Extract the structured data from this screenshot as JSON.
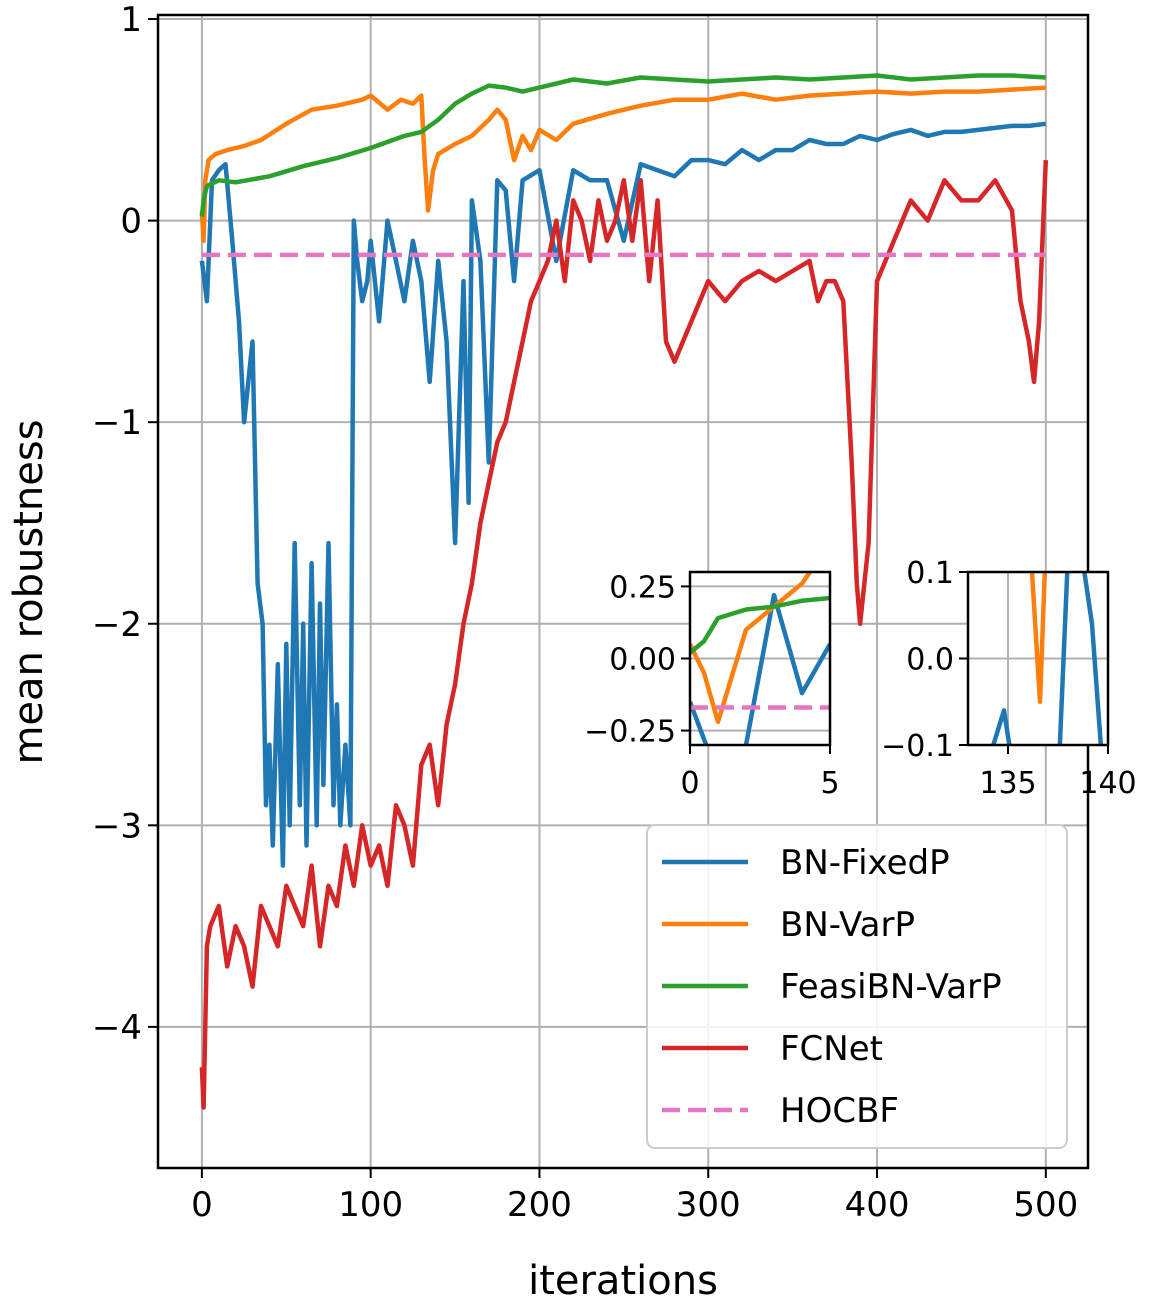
{
  "chart_data": {
    "type": "line",
    "title": "",
    "xlabel": "iterations",
    "ylabel": "mean robustness",
    "xlim": [
      -26,
      525
    ],
    "ylim": [
      -4.7,
      1.02
    ],
    "xticks": [
      0,
      100,
      200,
      300,
      400,
      500
    ],
    "xtick_labels": [
      "0",
      "100",
      "200",
      "300",
      "400",
      "500"
    ],
    "yticks": [
      1,
      0,
      -1,
      -2,
      -3,
      -4
    ],
    "ytick_labels": [
      "1",
      "0",
      "−1",
      "−2",
      "−3",
      "−4"
    ],
    "grid": true,
    "legend_position": "lower-right",
    "series": [
      {
        "name": "BN-FixedP",
        "color": "#1f77b4",
        "style": "solid",
        "x": [
          0,
          3,
          6,
          10,
          14,
          18,
          22,
          25,
          30,
          33,
          36,
          38,
          40,
          42,
          45,
          48,
          50,
          52,
          55,
          58,
          60,
          62,
          65,
          68,
          70,
          72,
          75,
          78,
          80,
          82,
          85,
          88,
          90,
          92,
          95,
          98,
          100,
          105,
          110,
          115,
          120,
          125,
          130,
          135,
          140,
          145,
          150,
          155,
          158,
          160,
          165,
          170,
          175,
          180,
          185,
          190,
          200,
          210,
          220,
          230,
          240,
          250,
          260,
          270,
          280,
          290,
          300,
          310,
          320,
          330,
          340,
          350,
          360,
          370,
          380,
          390,
          400,
          410,
          420,
          430,
          440,
          450,
          460,
          470,
          480,
          490,
          500
        ],
        "y": [
          -0.2,
          -0.4,
          0.2,
          0.25,
          0.28,
          -0.1,
          -0.5,
          -1.0,
          -0.6,
          -1.8,
          -2.0,
          -2.9,
          -2.6,
          -3.1,
          -2.2,
          -3.2,
          -2.1,
          -3.0,
          -1.6,
          -2.9,
          -2.0,
          -3.1,
          -1.7,
          -3.0,
          -1.9,
          -2.8,
          -1.6,
          -2.9,
          -2.4,
          -3.0,
          -2.6,
          -3.0,
          0.0,
          -0.2,
          -0.4,
          -0.3,
          -0.1,
          -0.5,
          0.0,
          -0.2,
          -0.4,
          -0.1,
          -0.3,
          -0.8,
          -0.2,
          -0.6,
          -1.6,
          -0.3,
          -1.4,
          0.1,
          -0.2,
          -1.2,
          0.2,
          0.15,
          -0.3,
          0.2,
          0.25,
          -0.2,
          0.25,
          0.2,
          0.2,
          -0.1,
          0.28,
          0.25,
          0.22,
          0.3,
          0.3,
          0.28,
          0.35,
          0.3,
          0.35,
          0.35,
          0.4,
          0.38,
          0.38,
          0.42,
          0.4,
          0.43,
          0.45,
          0.42,
          0.44,
          0.44,
          0.45,
          0.46,
          0.47,
          0.47,
          0.48
        ]
      },
      {
        "name": "BN-VarP",
        "color": "#ff7f0e",
        "style": "solid",
        "x": [
          0,
          1,
          2,
          4,
          8,
          15,
          25,
          35,
          50,
          65,
          80,
          95,
          100,
          110,
          118,
          125,
          130,
          132,
          134,
          137,
          140,
          150,
          160,
          170,
          175,
          180,
          185,
          190,
          195,
          200,
          210,
          220,
          240,
          260,
          280,
          300,
          320,
          340,
          360,
          380,
          400,
          420,
          440,
          460,
          480,
          500
        ],
        "y": [
          0.05,
          -0.1,
          0.2,
          0.3,
          0.33,
          0.35,
          0.37,
          0.4,
          0.48,
          0.55,
          0.57,
          0.6,
          0.62,
          0.55,
          0.6,
          0.58,
          0.62,
          0.3,
          0.05,
          0.25,
          0.33,
          0.38,
          0.42,
          0.5,
          0.55,
          0.5,
          0.3,
          0.42,
          0.35,
          0.45,
          0.4,
          0.48,
          0.53,
          0.57,
          0.6,
          0.6,
          0.63,
          0.6,
          0.62,
          0.63,
          0.64,
          0.63,
          0.64,
          0.64,
          0.65,
          0.66
        ]
      },
      {
        "name": "FeasiBN-VarP",
        "color": "#2ca02c",
        "style": "solid",
        "x": [
          0,
          1,
          2,
          3,
          5,
          10,
          20,
          40,
          60,
          80,
          100,
          120,
          130,
          140,
          150,
          160,
          170,
          180,
          190,
          200,
          220,
          240,
          260,
          280,
          300,
          320,
          340,
          360,
          380,
          400,
          420,
          440,
          460,
          480,
          500
        ],
        "y": [
          0.02,
          0.1,
          0.14,
          0.17,
          0.18,
          0.2,
          0.19,
          0.22,
          0.27,
          0.31,
          0.36,
          0.42,
          0.44,
          0.5,
          0.58,
          0.63,
          0.67,
          0.66,
          0.64,
          0.66,
          0.7,
          0.68,
          0.71,
          0.7,
          0.69,
          0.7,
          0.71,
          0.7,
          0.71,
          0.72,
          0.7,
          0.71,
          0.72,
          0.72,
          0.71
        ]
      },
      {
        "name": "FCNet",
        "color": "#d62728",
        "style": "solid",
        "x": [
          0,
          1,
          3,
          5,
          10,
          15,
          20,
          25,
          30,
          35,
          40,
          45,
          50,
          55,
          60,
          65,
          70,
          75,
          80,
          85,
          90,
          95,
          100,
          105,
          110,
          115,
          120,
          125,
          130,
          135,
          140,
          145,
          150,
          155,
          160,
          165,
          170,
          175,
          180,
          185,
          190,
          195,
          200,
          205,
          210,
          215,
          220,
          225,
          230,
          235,
          240,
          245,
          250,
          255,
          260,
          265,
          270,
          275,
          280,
          290,
          300,
          310,
          320,
          330,
          340,
          350,
          360,
          365,
          370,
          375,
          380,
          385,
          388,
          390,
          395,
          400,
          410,
          420,
          430,
          440,
          450,
          460,
          470,
          480,
          485,
          490,
          493,
          496,
          500
        ],
        "y": [
          -4.2,
          -4.4,
          -3.6,
          -3.5,
          -3.4,
          -3.7,
          -3.5,
          -3.6,
          -3.8,
          -3.4,
          -3.5,
          -3.6,
          -3.3,
          -3.4,
          -3.5,
          -3.2,
          -3.6,
          -3.3,
          -3.4,
          -3.1,
          -3.3,
          -3.0,
          -3.2,
          -3.1,
          -3.3,
          -2.9,
          -3.0,
          -3.2,
          -2.7,
          -2.6,
          -2.9,
          -2.5,
          -2.3,
          -2.0,
          -1.8,
          -1.5,
          -1.3,
          -1.1,
          -1.0,
          -0.8,
          -0.6,
          -0.4,
          -0.3,
          -0.2,
          0.0,
          -0.3,
          0.1,
          0.0,
          -0.2,
          0.1,
          -0.1,
          0.0,
          0.2,
          -0.1,
          0.2,
          -0.3,
          0.1,
          -0.6,
          -0.7,
          -0.5,
          -0.3,
          -0.4,
          -0.3,
          -0.25,
          -0.3,
          -0.25,
          -0.2,
          -0.4,
          -0.3,
          -0.3,
          -0.4,
          -1.2,
          -1.8,
          -2.0,
          -1.6,
          -0.3,
          -0.1,
          0.1,
          0.0,
          0.2,
          0.1,
          0.1,
          0.2,
          0.05,
          -0.4,
          -0.6,
          -0.8,
          -0.5,
          0.3
        ]
      },
      {
        "name": "HOCBF",
        "color": "#e377c2",
        "style": "dashed",
        "x": [
          0,
          500
        ],
        "y": [
          -0.17,
          -0.17
        ]
      }
    ],
    "insets": [
      {
        "xlim": [
          0,
          5
        ],
        "ylim": [
          -0.3,
          0.3
        ],
        "xticks": [
          0,
          5
        ],
        "xtick_labels": [
          "0",
          "5"
        ],
        "yticks": [
          0.25,
          0.0,
          -0.25
        ],
        "ytick_labels": [
          "0.25",
          "0.00",
          "−0.25"
        ],
        "series": [
          {
            "name": "BN-FixedP",
            "x": [
              0,
              0.5,
              1,
              2,
              3,
              4,
              5
            ],
            "y": [
              -0.15,
              -0.28,
              -0.4,
              -0.3,
              0.22,
              -0.12,
              0.05
            ]
          },
          {
            "name": "BN-VarP",
            "x": [
              0,
              0.5,
              1,
              2,
              3,
              4,
              5
            ],
            "y": [
              0.05,
              -0.05,
              -0.22,
              0.1,
              0.18,
              0.26,
              0.4
            ]
          },
          {
            "name": "FeasiBN-VarP",
            "x": [
              0,
              0.5,
              1,
              2,
              3,
              4,
              5
            ],
            "y": [
              0.02,
              0.06,
              0.14,
              0.17,
              0.18,
              0.2,
              0.21
            ]
          },
          {
            "name": "HOCBF",
            "x": [
              0,
              5
            ],
            "y": [
              -0.17,
              -0.17
            ]
          }
        ]
      },
      {
        "xlim": [
          133,
          140
        ],
        "ylim": [
          -0.1,
          0.1
        ],
        "xticks": [
          135,
          140
        ],
        "xtick_labels": [
          "135",
          "140"
        ],
        "yticks": [
          0.1,
          0.0,
          -0.1
        ],
        "ytick_labels": [
          "0.1",
          "0.0",
          "−0.1"
        ],
        "series": [
          {
            "name": "BN-FixedP",
            "x": [
              134,
              134.8,
              135.4,
              137.5,
              138.0,
              138.5,
              139.2,
              139.8
            ],
            "y": [
              -0.12,
              -0.06,
              -0.15,
              -0.15,
              0.12,
              0.15,
              0.04,
              -0.15
            ]
          },
          {
            "name": "BN-VarP",
            "x": [
              135.8,
              136.2,
              136.6,
              137.0
            ],
            "y": [
              0.15,
              0.1,
              -0.05,
              0.2
            ]
          }
        ]
      }
    ]
  }
}
